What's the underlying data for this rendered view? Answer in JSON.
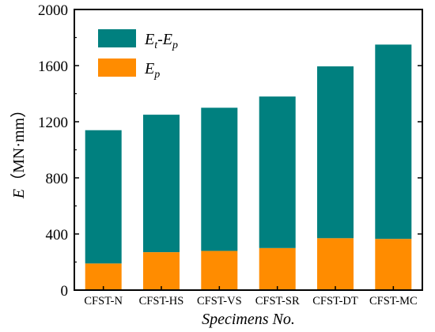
{
  "chart_data": {
    "type": "bar",
    "stacked": true,
    "categories": [
      "CFST-N",
      "CFST-HS",
      "CFST-VS",
      "CFST-SR",
      "CFST-DT",
      "CFST-MC"
    ],
    "series": [
      {
        "name": "Ep",
        "values": [
          190,
          270,
          280,
          300,
          370,
          365
        ]
      },
      {
        "name": "Et-Ep",
        "values": [
          950,
          980,
          1020,
          1080,
          1225,
          1385
        ]
      }
    ],
    "colors": {
      "Ep": "#ff8c00",
      "Et-Ep": "#00807f"
    },
    "xlabel": "Specimens No.",
    "ylabel": "E（MN·mm）",
    "ylim": [
      0,
      2000
    ],
    "yticks": [
      0,
      400,
      800,
      1200,
      1600,
      2000
    ],
    "grid": false,
    "legend_position": "top-left"
  }
}
